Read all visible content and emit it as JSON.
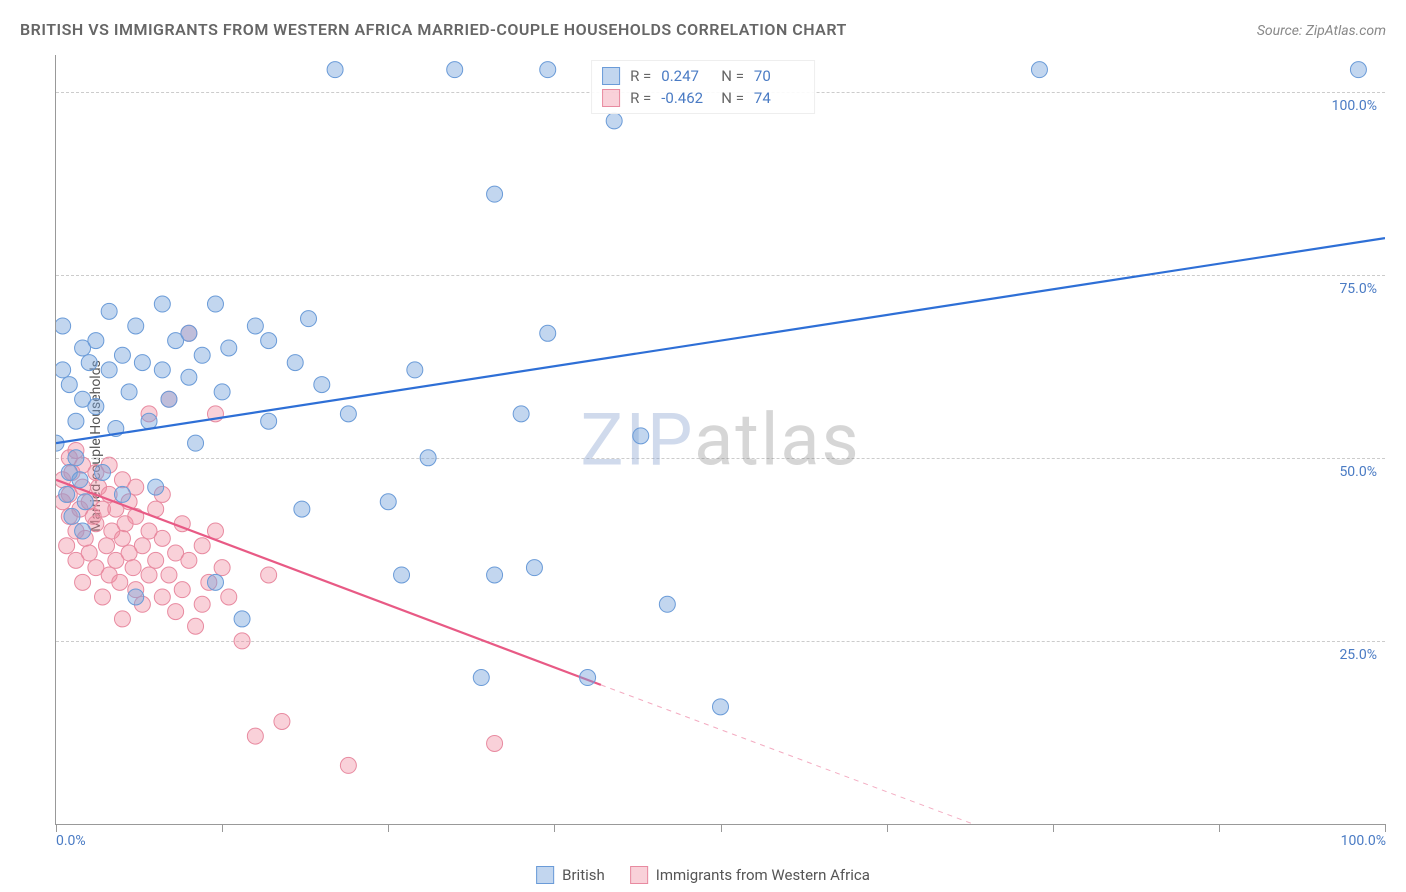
{
  "title": "BRITISH VS IMMIGRANTS FROM WESTERN AFRICA MARRIED-COUPLE HOUSEHOLDS CORRELATION CHART",
  "source": "Source: ZipAtlas.com",
  "ylabel": "Married-couple Households",
  "watermark_zip": "ZIP",
  "watermark_atlas": "atlas",
  "axes": {
    "xlim": [
      0,
      100
    ],
    "ylim": [
      0,
      105
    ],
    "x_tick_left": "0.0%",
    "x_tick_right": "100.0%",
    "y_ticks": [
      {
        "value": 25,
        "label": "25.0%"
      },
      {
        "value": 50,
        "label": "50.0%"
      },
      {
        "value": 75,
        "label": "75.0%"
      },
      {
        "value": 100,
        "label": "100.0%"
      }
    ],
    "x_tick_positions": [
      0,
      12.5,
      25,
      37.5,
      50,
      62.5,
      75,
      87.5,
      100
    ],
    "grid_color": "#cccccc",
    "axis_color": "#999999"
  },
  "series": {
    "blue": {
      "label": "British",
      "color_fill": "rgba(120,165,220,0.45)",
      "color_stroke": "#6a9bd8",
      "line_color": "#2e6fd6",
      "R": "0.247",
      "N": "70",
      "regression": {
        "x1": 0,
        "y1": 52,
        "x2": 100,
        "y2": 80
      },
      "points": [
        [
          0,
          52
        ],
        [
          0.5,
          68
        ],
        [
          0.5,
          62
        ],
        [
          0.8,
          45
        ],
        [
          1,
          60
        ],
        [
          1,
          48
        ],
        [
          1.2,
          42
        ],
        [
          1.5,
          55
        ],
        [
          1.5,
          50
        ],
        [
          1.8,
          47
        ],
        [
          2,
          65
        ],
        [
          2,
          58
        ],
        [
          2,
          40
        ],
        [
          2.2,
          44
        ],
        [
          2.5,
          63
        ],
        [
          3,
          66
        ],
        [
          3,
          57
        ],
        [
          3.5,
          48
        ],
        [
          4,
          62
        ],
        [
          4,
          70
        ],
        [
          4.5,
          54
        ],
        [
          5,
          45
        ],
        [
          5,
          64
        ],
        [
          5.5,
          59
        ],
        [
          6,
          31
        ],
        [
          6,
          68
        ],
        [
          6.5,
          63
        ],
        [
          7,
          55
        ],
        [
          7.5,
          46
        ],
        [
          8,
          71
        ],
        [
          8,
          62
        ],
        [
          8.5,
          58
        ],
        [
          9,
          66
        ],
        [
          10,
          61
        ],
        [
          10,
          67
        ],
        [
          10.5,
          52
        ],
        [
          11,
          64
        ],
        [
          12,
          33
        ],
        [
          12,
          71
        ],
        [
          12.5,
          59
        ],
        [
          13,
          65
        ],
        [
          14,
          28
        ],
        [
          15,
          68
        ],
        [
          16,
          55
        ],
        [
          16,
          66
        ],
        [
          18,
          63
        ],
        [
          18.5,
          43
        ],
        [
          19,
          69
        ],
        [
          20,
          60
        ],
        [
          21,
          103
        ],
        [
          22,
          56
        ],
        [
          25,
          44
        ],
        [
          26,
          34
        ],
        [
          27,
          62
        ],
        [
          28,
          50
        ],
        [
          30,
          103
        ],
        [
          32,
          20
        ],
        [
          33,
          34
        ],
        [
          33,
          86
        ],
        [
          35,
          56
        ],
        [
          36,
          35
        ],
        [
          37,
          103
        ],
        [
          37,
          67
        ],
        [
          40,
          20
        ],
        [
          42,
          96
        ],
        [
          44,
          53
        ],
        [
          46,
          30
        ],
        [
          50,
          16
        ],
        [
          74,
          103
        ],
        [
          98,
          103
        ]
      ]
    },
    "pink": {
      "label": "Immigants from Western Africa",
      "label_display": "Immigrants from Western Africa",
      "color_fill": "rgba(240,140,160,0.4)",
      "color_stroke": "#e88aa0",
      "line_color": "#e85a85",
      "R": "-0.462",
      "N": "74",
      "regression": {
        "x1": 0,
        "y1": 47,
        "x2": 41,
        "y2": 19
      },
      "regression_ext": {
        "x1": 41,
        "y1": 19,
        "x2": 69,
        "y2": 0
      },
      "points": [
        [
          0.5,
          47
        ],
        [
          0.5,
          44
        ],
        [
          0.8,
          38
        ],
        [
          1,
          50
        ],
        [
          1,
          42
        ],
        [
          1,
          45
        ],
        [
          1.2,
          48
        ],
        [
          1.5,
          40
        ],
        [
          1.5,
          36
        ],
        [
          1.5,
          51
        ],
        [
          1.8,
          43
        ],
        [
          2,
          46
        ],
        [
          2,
          33
        ],
        [
          2,
          49
        ],
        [
          2.2,
          39
        ],
        [
          2.5,
          44
        ],
        [
          2.5,
          37
        ],
        [
          2.8,
          42
        ],
        [
          3,
          48
        ],
        [
          3,
          35
        ],
        [
          3,
          41
        ],
        [
          3.2,
          46
        ],
        [
          3.5,
          31
        ],
        [
          3.5,
          43
        ],
        [
          3.8,
          38
        ],
        [
          4,
          45
        ],
        [
          4,
          34
        ],
        [
          4,
          49
        ],
        [
          4.2,
          40
        ],
        [
          4.5,
          36
        ],
        [
          4.5,
          43
        ],
        [
          4.8,
          33
        ],
        [
          5,
          47
        ],
        [
          5,
          39
        ],
        [
          5,
          28
        ],
        [
          5.2,
          41
        ],
        [
          5.5,
          37
        ],
        [
          5.5,
          44
        ],
        [
          5.8,
          35
        ],
        [
          6,
          42
        ],
        [
          6,
          32
        ],
        [
          6,
          46
        ],
        [
          6.5,
          38
        ],
        [
          6.5,
          30
        ],
        [
          7,
          40
        ],
        [
          7,
          34
        ],
        [
          7,
          56
        ],
        [
          7.5,
          36
        ],
        [
          7.5,
          43
        ],
        [
          8,
          31
        ],
        [
          8,
          39
        ],
        [
          8,
          45
        ],
        [
          8.5,
          34
        ],
        [
          8.5,
          58
        ],
        [
          9,
          37
        ],
        [
          9,
          29
        ],
        [
          9.5,
          41
        ],
        [
          9.5,
          32
        ],
        [
          10,
          36
        ],
        [
          10,
          67
        ],
        [
          10.5,
          27
        ],
        [
          11,
          38
        ],
        [
          11,
          30
        ],
        [
          11.5,
          33
        ],
        [
          12,
          56
        ],
        [
          12,
          40
        ],
        [
          12.5,
          35
        ],
        [
          13,
          31
        ],
        [
          14,
          25
        ],
        [
          15,
          12
        ],
        [
          16,
          34
        ],
        [
          17,
          14
        ],
        [
          22,
          8
        ],
        [
          33,
          11
        ]
      ]
    }
  },
  "legend_top": {
    "r_label": "R =",
    "n_label": "N ="
  },
  "marker_radius": 8,
  "marker_stroke_width": 1,
  "line_width": 2.2
}
